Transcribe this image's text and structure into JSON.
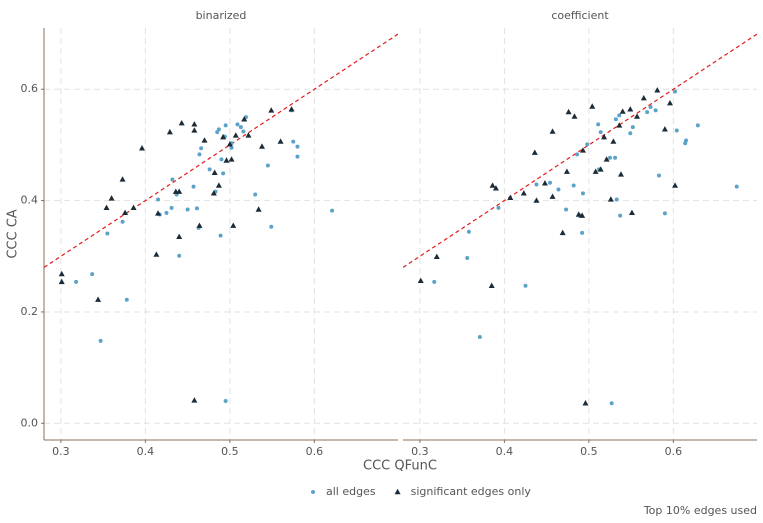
{
  "chart_data": {
    "type": "scatter",
    "xlabel": "CCC QFunC",
    "ylabel": "CCC CA",
    "caption": "Top 10% edges used",
    "ylim": [
      -0.03,
      0.71
    ],
    "yticks": [
      {
        "value": 0,
        "label": "0.0"
      },
      0.2,
      0.4,
      0.6
    ],
    "grid": true,
    "legend": "bottom",
    "series": [
      {
        "name": "all edges",
        "color": "#5ba3c8",
        "marker": "circle"
      },
      {
        "name": "significant edges only",
        "color": "#1c2b38",
        "marker": "triangle"
      }
    ],
    "reference_line": {
      "slope": 1,
      "intercept": 0,
      "color": "#e31a1c"
    },
    "panels": [
      {
        "title": "binarized",
        "xlim": [
          0.28,
          0.699
        ],
        "xticks": [
          0.3,
          0.4,
          0.5,
          0.6
        ],
        "series": [
          {
            "x": [
              0.318,
              0.337,
              0.347,
              0.355,
              0.373,
              0.378,
              0.415,
              0.417,
              0.425,
              0.431,
              0.432,
              0.44,
              0.437,
              0.45,
              0.457,
              0.461,
              0.463,
              0.464,
              0.466,
              0.476,
              0.483,
              0.485,
              0.487,
              0.489,
              0.49,
              0.492,
              0.494,
              0.495,
              0.495,
              0.502,
              0.502,
              0.509,
              0.513,
              0.516,
              0.519,
              0.53,
              0.545,
              0.549,
              0.573,
              0.575,
              0.58,
              0.58,
              0.621
            ],
            "y": [
              0.254,
              0.268,
              0.148,
              0.341,
              0.362,
              0.222,
              0.402,
              0.375,
              0.378,
              0.387,
              0.438,
              0.301,
              0.411,
              0.384,
              0.425,
              0.386,
              0.351,
              0.483,
              0.494,
              0.456,
              0.416,
              0.523,
              0.528,
              0.337,
              0.474,
              0.449,
              0.515,
              0.04,
              0.535,
              0.495,
              0.503,
              0.537,
              0.532,
              0.524,
              0.55,
              0.411,
              0.463,
              0.353,
              0.562,
              0.506,
              0.479,
              0.497,
              0.382
            ]
          },
          {
            "x": [
              0.301,
              0.301,
              0.344,
              0.354,
              0.36,
              0.373,
              0.376,
              0.386,
              0.396,
              0.413,
              0.415,
              0.429,
              0.436,
              0.44,
              0.44,
              0.443,
              0.458,
              0.458,
              0.458,
              0.464,
              0.47,
              0.481,
              0.482,
              0.487,
              0.492,
              0.496,
              0.5,
              0.502,
              0.504,
              0.507,
              0.517,
              0.522,
              0.534,
              0.538,
              0.549,
              0.56,
              0.573
            ],
            "y": [
              0.268,
              0.254,
              0.222,
              0.387,
              0.404,
              0.438,
              0.378,
              0.387,
              0.494,
              0.303,
              0.377,
              0.523,
              0.416,
              0.416,
              0.335,
              0.539,
              0.537,
              0.526,
              0.041,
              0.355,
              0.508,
              0.413,
              0.45,
              0.427,
              0.514,
              0.472,
              0.501,
              0.474,
              0.355,
              0.517,
              0.546,
              0.517,
              0.384,
              0.497,
              0.562,
              0.506,
              0.564
            ]
          }
        ]
      },
      {
        "title": "coefficient",
        "xlim": [
          0.28,
          0.699
        ],
        "xticks": [
          0.3,
          0.4,
          0.5,
          0.6
        ],
        "series": [
          {
            "x": [
              0.317,
              0.356,
              0.371,
              0.358,
              0.393,
              0.425,
              0.438,
              0.454,
              0.464,
              0.473,
              0.482,
              0.486,
              0.489,
              0.492,
              0.493,
              0.498,
              0.511,
              0.512,
              0.514,
              0.525,
              0.527,
              0.531,
              0.532,
              0.533,
              0.536,
              0.537,
              0.549,
              0.552,
              0.569,
              0.573,
              0.579,
              0.583,
              0.59,
              0.602,
              0.604,
              0.614,
              0.615,
              0.629,
              0.675
            ],
            "y": [
              0.254,
              0.297,
              0.155,
              0.344,
              0.387,
              0.247,
              0.429,
              0.432,
              0.42,
              0.384,
              0.427,
              0.483,
              0.373,
              0.342,
              0.413,
              0.501,
              0.537,
              0.456,
              0.523,
              0.477,
              0.036,
              0.477,
              0.546,
              0.402,
              0.553,
              0.373,
              0.521,
              0.532,
              0.559,
              0.568,
              0.562,
              0.445,
              0.377,
              0.596,
              0.526,
              0.503,
              0.508,
              0.535,
              0.425
            ]
          },
          {
            "x": [
              0.301,
              0.32,
              0.385,
              0.386,
              0.39,
              0.407,
              0.423,
              0.436,
              0.438,
              0.448,
              0.457,
              0.457,
              0.469,
              0.474,
              0.476,
              0.483,
              0.488,
              0.492,
              0.493,
              0.496,
              0.504,
              0.508,
              0.514,
              0.518,
              0.521,
              0.526,
              0.529,
              0.536,
              0.538,
              0.54,
              0.549,
              0.551,
              0.557,
              0.565,
              0.581,
              0.59,
              0.596,
              0.602
            ],
            "y": [
              0.256,
              0.299,
              0.247,
              0.427,
              0.422,
              0.405,
              0.413,
              0.486,
              0.4,
              0.431,
              0.524,
              0.407,
              0.342,
              0.452,
              0.559,
              0.551,
              0.375,
              0.373,
              0.49,
              0.036,
              0.569,
              0.452,
              0.456,
              0.514,
              0.474,
              0.402,
              0.506,
              0.535,
              0.447,
              0.56,
              0.564,
              0.378,
              0.551,
              0.584,
              0.598,
              0.528,
              0.575,
              0.427
            ]
          }
        ]
      }
    ]
  }
}
